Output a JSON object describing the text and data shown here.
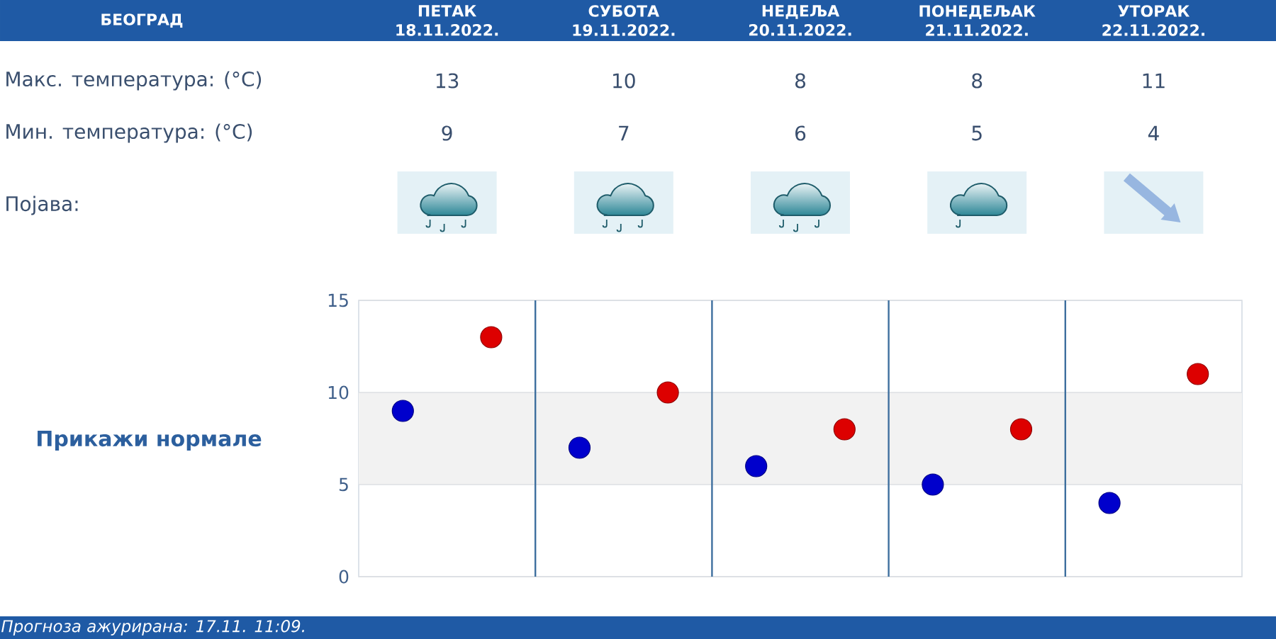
{
  "chart_data": {
    "type": "scatter",
    "title": "БЕОГРАД",
    "categories": [
      null,
      null,
      null,
      null,
      null
    ],
    "series": [
      {
        "color": "#dd0000",
        "values": [
          13,
          10,
          8,
          8,
          11
        ]
      },
      {
        "color": "#0000cc",
        "values": [
          9,
          7,
          6,
          5,
          4
        ]
      }
    ],
    "ylim": [
      0,
      15
    ],
    "yticks": [
      0,
      5,
      10,
      15
    ],
    "grid": true,
    "marker": "circle",
    "data_labels": true,
    "bands": [
      {
        "axis": "y",
        "from": 5,
        "to": 10,
        "color": "#f2f2f2"
      }
    ],
    "annotations": [
      "ПЕТАК 18.11.2022.",
      "СУБОТА 19.11.2022.",
      "НЕДЕЉА 20.11.2022.",
      "ПОНЕДЕЉАК 21.11.2022.",
      "УТОРАК 22.11.2022.",
      "Макс. температура: (°C)",
      "Мин. температура: (°C)",
      "Појава:",
      "Прикажи нормале",
      "Прогноза ажурирана:  17.11. 11:09."
    ]
  }
}
